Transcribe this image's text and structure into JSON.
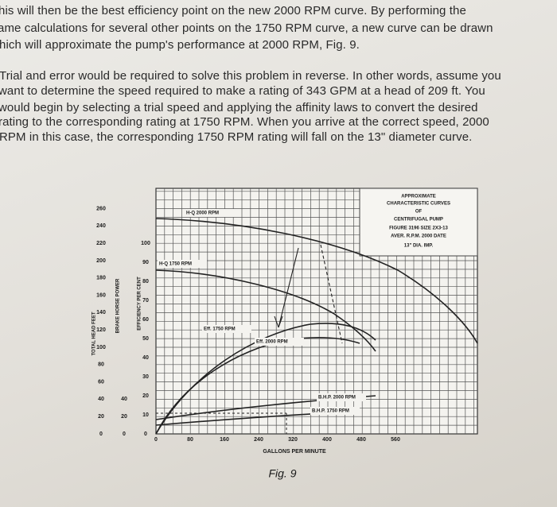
{
  "paragraphs": [
    [
      "his will then be the best efficiency point on the new 2000 RPM curve. By performing the",
      "ame calculations for several other points on the 1750 RPM curve, a new curve can be drawn",
      "hich will approximate the pump's performance at 2000 RPM, Fig. 9."
    ],
    [
      "Trial and error would be required to solve this problem in reverse. In other words, assume you",
      "want to determine the speed required to make a rating of 343 GPM at a head of 209 ft. You",
      "would begin by selecting a trial speed and applying the affinity laws to convert the desired",
      "rating to the corresponding rating at 1750 RPM. When you arrive at the correct speed, 2000",
      "RPM in this case, the corresponding 1750 RPM rating will fall on the 13\" diameter curve."
    ]
  ],
  "figure": {
    "x_ticks": [
      0,
      80,
      160,
      240,
      320,
      400,
      480,
      560
    ],
    "head_ticks": [
      0,
      20,
      40,
      60,
      80,
      100,
      120,
      140,
      160,
      180,
      200,
      220,
      240,
      260
    ],
    "hp_ticks": [
      0,
      20,
      40
    ],
    "eff_ticks": [
      0,
      10,
      20,
      30,
      40,
      50,
      60,
      70,
      80,
      90,
      100
    ],
    "x_title": "GALLONS PER MINUTE",
    "head_title": "TOTAL HEAD FEET",
    "hp_title": "BRAKE HORSE POWER",
    "eff_title": "EFFICIENCY PER CENT",
    "box_lines": [
      "APPROXIMATE",
      "CHARACTERISTIC CURVES",
      "OF",
      "CENTRIFUGAL PUMP",
      "FIGURE 3196    SIZE 2X3-13",
      "AVER. R.P.M. 2000   DATE",
      "13\" DIA. IMP."
    ],
    "curve_labels": [
      "H-Q 2000 RPM",
      "H-Q 1750 RPM",
      "Eff. 1750 RPM",
      "Eff. 2000 RPM",
      "B.H.P. 2000 RPM",
      "B.H.P. 1750 RPM"
    ],
    "caption": "Fig. 9"
  }
}
